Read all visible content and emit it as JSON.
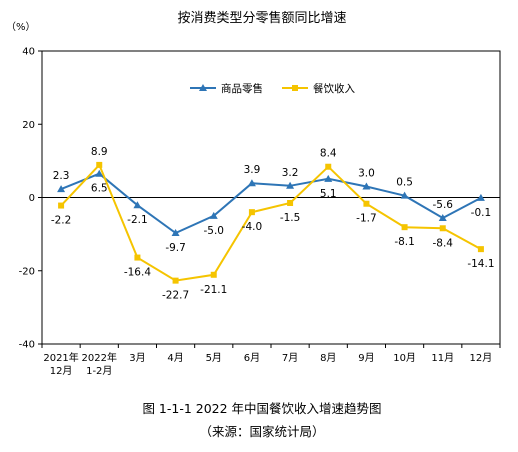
{
  "chart_data": {
    "type": "line",
    "title": "按消费类型分零售额同比增速",
    "ylabel": "（%）",
    "xlabel": "",
    "ylim": [
      -40,
      40
    ],
    "yticks": [
      40,
      20,
      0,
      -20,
      -40
    ],
    "categories": [
      [
        "2021年",
        "12月"
      ],
      [
        "2022年",
        "1-2月"
      ],
      [
        "3月"
      ],
      [
        "4月"
      ],
      [
        "5月"
      ],
      [
        "6月"
      ],
      [
        "7月"
      ],
      [
        "8月"
      ],
      [
        "9月"
      ],
      [
        "10月"
      ],
      [
        "11月"
      ],
      [
        "12月"
      ]
    ],
    "series": [
      {
        "name": "商品零售",
        "color": "#2e75b6",
        "marker": "triangle",
        "values": [
          2.3,
          6.5,
          -2.1,
          -9.7,
          -5.0,
          3.9,
          3.2,
          5.1,
          3.0,
          0.5,
          -5.6,
          -0.1
        ],
        "labels": [
          "2.3",
          "6.5",
          "-2.1",
          "-9.7",
          "-5.0",
          "3.9",
          "3.2",
          "5.1",
          "3.0",
          "0.5",
          "-5.6",
          "-0.1"
        ]
      },
      {
        "name": "餐饮收入",
        "color": "#f5c400",
        "marker": "square",
        "values": [
          -2.2,
          8.9,
          -16.4,
          -22.7,
          -21.1,
          -4.0,
          -1.5,
          8.4,
          -1.7,
          -8.1,
          -8.4,
          -14.1
        ],
        "labels": [
          "-2.2",
          "8.9",
          "-16.4",
          "-22.7",
          "-21.1",
          "-4.0",
          "-1.5",
          "8.4",
          "-1.7",
          "-8.1",
          "-8.4",
          "-14.1"
        ]
      }
    ],
    "grid": false,
    "legend": "top-right"
  },
  "caption": {
    "line1": "图 1-1-1   2022 年中国餐饮收入增速趋势图",
    "line2": "（来源：国家统计局）"
  }
}
